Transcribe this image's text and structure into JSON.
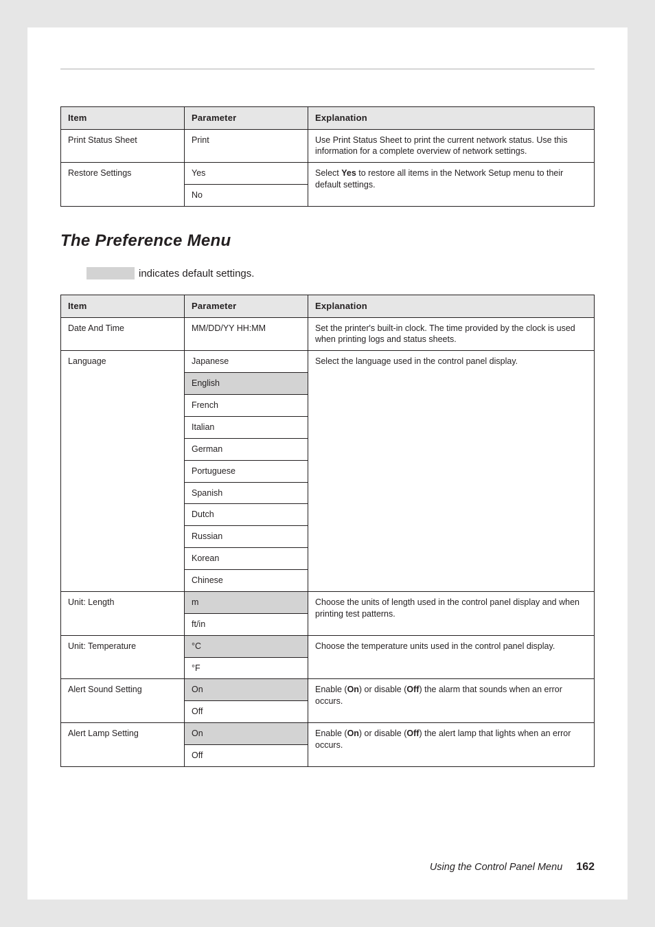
{
  "table1": {
    "headers": {
      "item": "Item",
      "param": "Parameter",
      "exp": "Explanation"
    },
    "rows": {
      "print_status": {
        "item": "Print Status Sheet",
        "param": "Print",
        "exp": "Use Print Status Sheet to print the current network status. Use this information for a complete overview of network settings."
      },
      "restore": {
        "item": "Restore Settings",
        "param_yes": "Yes",
        "param_no": "No",
        "exp_a": "Select ",
        "exp_bold": "Yes",
        "exp_b": " to restore all items in the Network Setup menu to their default settings."
      }
    }
  },
  "section_title": "The Preference Menu",
  "default_note": "indicates default settings.",
  "table2": {
    "headers": {
      "item": "Item",
      "param": "Parameter",
      "exp": "Explanation"
    },
    "datetime": {
      "item": "Date And Time",
      "param": "MM/DD/YY HH:MM",
      "exp": "Set the printer's built-in clock. The time provided by the clock is used when printing logs and status sheets."
    },
    "language": {
      "item": "Language",
      "params": {
        "ja": "Japanese",
        "en": "English",
        "fr": "French",
        "it": "Italian",
        "de": "German",
        "pt": "Portuguese",
        "es": "Spanish",
        "nl": "Dutch",
        "ru": "Russian",
        "ko": "Korean",
        "zh": "Chinese"
      },
      "exp": "Select the language used in the control panel display."
    },
    "unit_length": {
      "item": "Unit: Length",
      "param_m": "m",
      "param_ftin": "ft/in",
      "exp": "Choose the units of length used in the control panel display and when printing test patterns."
    },
    "unit_temp": {
      "item": "Unit: Temperature",
      "param_c": "°C",
      "param_f": "°F",
      "exp": "Choose the temperature units used in the control panel display."
    },
    "alert_sound": {
      "item": "Alert Sound Setting",
      "param_on": "On",
      "param_off": "Off",
      "exp_a": "Enable (",
      "exp_on": "On",
      "exp_b": ") or disable (",
      "exp_off": "Off",
      "exp_c": ") the alarm that sounds when an error occurs."
    },
    "alert_lamp": {
      "item": "Alert Lamp Setting",
      "param_on": "On",
      "param_off": "Off",
      "exp_a": "Enable (",
      "exp_on": "On",
      "exp_b": ") or disable (",
      "exp_off": "Off",
      "exp_c": ") the alert lamp that lights when an error occurs."
    }
  },
  "footer": {
    "text": "Using the Control Panel Menu",
    "page": "162"
  }
}
